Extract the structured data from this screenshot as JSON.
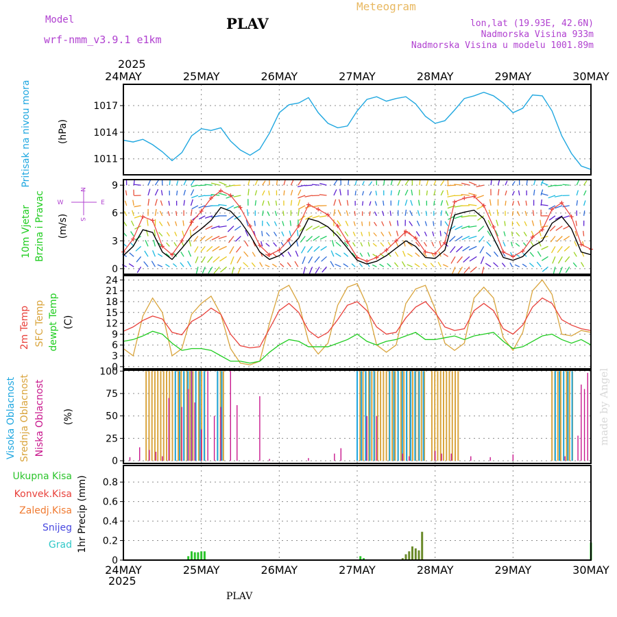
{
  "header": {
    "model_label": "Model",
    "model_name": "wrf-nmm_v3.9.1  e1km",
    "station": "PLAV",
    "product": "Meteogram",
    "lonlat": "lon,lat (19.93E, 42.6N)",
    "elevation": "Nadmorska Visina 933m",
    "model_elevation": "Nadmorska Visina u modelu 1001.89m",
    "year": "2025",
    "footer_station": "PLAV",
    "credit": "made by Angel"
  },
  "colors": {
    "pressure": "#1fa7e0",
    "temp2m": "#e8403a",
    "sfc_temp": "#d9a43c",
    "dewpoint": "#1ecc1e",
    "wind_speed": "#000000",
    "gust": "#e8403a",
    "high_cloud": "#1fa7e0",
    "mid_cloud": "#d9a43c",
    "low_cloud": "#c8168c",
    "total_precip": "#2cc42c",
    "conv_precip": "#e8403a",
    "frozen_precip": "#f07a30",
    "snow": "#4848e0",
    "hail": "#30c8c8",
    "model_label": "#b040d0",
    "product_label": "#e8b860"
  },
  "chart_data": [
    {
      "type": "line",
      "panel": "pressure",
      "ylabel": [
        "Pritisak na nivou mora",
        "(hPa)"
      ],
      "yticks": [
        1011,
        1014,
        1017
      ],
      "ylim": [
        1009.2,
        1019.4
      ],
      "grid": true,
      "x_start": "2025-05-24 00:00",
      "x_ticks": [
        "24MAY",
        "25MAY",
        "26MAY",
        "27MAY",
        "28MAY",
        "29MAY",
        "30MAY"
      ],
      "x": [
        0,
        3,
        6,
        9,
        12,
        15,
        18,
        21,
        24,
        27,
        30,
        33,
        36,
        39,
        42,
        45,
        48,
        51,
        54,
        57,
        60,
        63,
        66,
        69,
        72,
        75,
        78,
        81,
        84,
        87,
        90,
        93,
        96,
        99,
        102,
        105,
        108,
        111,
        114,
        117,
        120,
        123,
        126,
        129,
        132,
        135,
        138,
        141,
        144
      ],
      "series": [
        {
          "values": [
            1013.1,
            1012.9,
            1013.2,
            1012.6,
            1011.8,
            1010.8,
            1011.7,
            1013.6,
            1014.4,
            1014.2,
            1014.5,
            1013.0,
            1012.0,
            1011.4,
            1012.1,
            1013.9,
            1016.2,
            1017.1,
            1017.3,
            1017.9,
            1016.2,
            1015.0,
            1014.5,
            1014.7,
            1016.4,
            1017.7,
            1018.0,
            1017.5,
            1017.8,
            1018.0,
            1017.2,
            1015.8,
            1015.0,
            1015.3,
            1016.5,
            1017.8,
            1018.1,
            1018.5,
            1018.1,
            1017.3,
            1016.2,
            1016.7,
            1018.2,
            1018.1,
            1016.4,
            1013.6,
            1011.6,
            1010.2,
            1009.8
          ]
        }
      ]
    },
    {
      "type": "line",
      "panel": "wind",
      "ylabel": [
        "10m Vjetar",
        "Brzina i Pravac",
        "(m/s)"
      ],
      "compass": {
        "north": "N",
        "south": "S",
        "east": "E",
        "west": "W"
      },
      "yticks": [
        0,
        3,
        6,
        9
      ],
      "ylim": [
        -0.6,
        9.6
      ],
      "grid": true,
      "x": [
        0,
        3,
        6,
        9,
        12,
        15,
        18,
        21,
        24,
        27,
        30,
        33,
        36,
        39,
        42,
        45,
        48,
        51,
        54,
        57,
        60,
        63,
        66,
        69,
        72,
        75,
        78,
        81,
        84,
        87,
        90,
        93,
        96,
        99,
        102,
        105,
        108,
        111,
        114,
        117,
        120,
        123,
        126,
        129,
        132,
        135,
        138,
        141,
        144
      ],
      "series": [
        {
          "name": "speed",
          "values": [
            1.4,
            2.4,
            4.2,
            3.9,
            1.8,
            1.0,
            2.2,
            3.5,
            4.3,
            5.2,
            6.6,
            6.2,
            5.1,
            3.6,
            1.8,
            1.0,
            1.4,
            2.2,
            3.3,
            5.4,
            5.1,
            4.5,
            3.5,
            2.2,
            0.9,
            0.5,
            0.8,
            1.4,
            2.2,
            3.0,
            2.4,
            1.2,
            1.1,
            2.0,
            5.8,
            6.1,
            6.3,
            5.4,
            3.3,
            1.2,
            0.9,
            1.3,
            2.4,
            3.0,
            4.9,
            5.6,
            4.3,
            1.8,
            1.5
          ]
        },
        {
          "name": "gust",
          "values": [
            1.8,
            3.2,
            5.6,
            5.2,
            2.4,
            1.5,
            3.0,
            5.0,
            6.2,
            7.6,
            8.4,
            7.9,
            6.6,
            4.6,
            2.5,
            1.5,
            2.0,
            3.1,
            4.6,
            6.9,
            6.4,
            5.8,
            4.6,
            2.9,
            1.2,
            0.8,
            1.2,
            2.0,
            3.0,
            4.0,
            3.3,
            1.8,
            1.6,
            2.8,
            7.2,
            7.6,
            7.8,
            6.8,
            4.5,
            1.8,
            1.3,
            1.9,
            3.4,
            4.2,
            6.4,
            7.1,
            5.6,
            2.6,
            2.1
          ]
        }
      ]
    },
    {
      "type": "line",
      "panel": "temperature",
      "ylabel": [
        "2m Temp",
        "SFC Temp",
        "dewpt Temp",
        "(C)"
      ],
      "yticks": [
        0,
        3,
        6,
        9,
        12,
        15,
        18,
        21,
        24
      ],
      "ylim": [
        -0.6,
        25.2
      ],
      "grid": true,
      "x": [
        0,
        3,
        6,
        9,
        12,
        15,
        18,
        21,
        24,
        27,
        30,
        33,
        36,
        39,
        42,
        45,
        48,
        51,
        54,
        57,
        60,
        63,
        66,
        69,
        72,
        75,
        78,
        81,
        84,
        87,
        90,
        93,
        96,
        99,
        102,
        105,
        108,
        111,
        114,
        117,
        120,
        123,
        126,
        129,
        132,
        135,
        138,
        141,
        144
      ],
      "series": [
        {
          "name": "2m Temp",
          "values": [
            9.8,
            11.0,
            12.8,
            14.0,
            13.2,
            9.5,
            8.8,
            12.5,
            14.0,
            16.2,
            14.5,
            9.0,
            5.8,
            5.2,
            5.5,
            10.5,
            15.5,
            17.5,
            15.0,
            10.0,
            8.0,
            9.5,
            13.0,
            17.0,
            18.0,
            15.5,
            11.0,
            9.0,
            9.5,
            13.5,
            16.5,
            18.0,
            15.0,
            11.0,
            10.0,
            10.5,
            15.5,
            17.5,
            15.5,
            10.5,
            9.0,
            11.5,
            16.5,
            19.0,
            17.5,
            13.0,
            11.5,
            10.5,
            10.0
          ]
        },
        {
          "name": "SFC Temp",
          "values": [
            5.0,
            3.0,
            14.0,
            19.0,
            15.0,
            3.0,
            5.0,
            14.5,
            17.5,
            19.5,
            14.5,
            5.0,
            1.0,
            0.5,
            1.5,
            12.0,
            21.0,
            22.5,
            17.5,
            7.0,
            3.5,
            6.5,
            17.0,
            22.0,
            23.0,
            17.0,
            6.0,
            4.0,
            6.0,
            17.5,
            21.5,
            22.5,
            16.0,
            6.5,
            4.5,
            6.5,
            19.0,
            22.0,
            19.0,
            8.0,
            4.5,
            9.5,
            21.0,
            24.0,
            20.0,
            9.0,
            8.5,
            10.0,
            9.5
          ]
        },
        {
          "name": "dewpt Temp",
          "values": [
            7.0,
            7.5,
            8.5,
            9.8,
            9.0,
            6.5,
            4.5,
            5.0,
            5.0,
            4.5,
            3.0,
            1.5,
            1.5,
            1.0,
            1.5,
            4.0,
            6.0,
            7.5,
            7.0,
            5.5,
            5.5,
            5.5,
            6.5,
            7.5,
            9.0,
            7.0,
            6.0,
            7.0,
            7.5,
            8.5,
            9.5,
            7.5,
            7.5,
            8.0,
            8.5,
            7.5,
            8.5,
            9.0,
            9.5,
            7.0,
            5.0,
            5.5,
            7.0,
            8.5,
            9.0,
            7.5,
            6.5,
            7.5,
            6.0
          ]
        }
      ]
    },
    {
      "type": "bar",
      "panel": "cloud",
      "ylabel": [
        "Visoka Oblacnost",
        "Srednja Oblacnost",
        "Niska Oblacnost",
        "(%)"
      ],
      "yticks": [
        0,
        25,
        50,
        75,
        100
      ],
      "ylim": [
        -3,
        101
      ],
      "grid": true,
      "high_intervals": [
        [
          16,
          20
        ],
        [
          21,
          25
        ],
        [
          29,
          31
        ],
        [
          72,
          78
        ],
        [
          82,
          93
        ],
        [
          133,
          139
        ]
      ],
      "mid_intervals": [
        [
          7,
          25
        ],
        [
          29,
          31
        ],
        [
          72,
          93
        ],
        [
          95,
          104
        ],
        [
          132,
          139
        ]
      ],
      "low_bars": [
        [
          2,
          4
        ],
        [
          5,
          15
        ],
        [
          8,
          12
        ],
        [
          10,
          10
        ],
        [
          12,
          5
        ],
        [
          14,
          70
        ],
        [
          18,
          60
        ],
        [
          20,
          80
        ],
        [
          21,
          100
        ],
        [
          22,
          65
        ],
        [
          24,
          35
        ],
        [
          26,
          100
        ],
        [
          28,
          50
        ],
        [
          30,
          60
        ],
        [
          33,
          100
        ],
        [
          35,
          62
        ],
        [
          42,
          72
        ],
        [
          45,
          2
        ],
        [
          57,
          3
        ],
        [
          65,
          8
        ],
        [
          67,
          14
        ],
        [
          75,
          50
        ],
        [
          78,
          50
        ],
        [
          86,
          8
        ],
        [
          88,
          5
        ],
        [
          96,
          11
        ],
        [
          98,
          8
        ],
        [
          101,
          8
        ],
        [
          107,
          5
        ],
        [
          113,
          4
        ],
        [
          120,
          7
        ],
        [
          136,
          5
        ],
        [
          140,
          28
        ],
        [
          141,
          85
        ],
        [
          142,
          80
        ],
        [
          143,
          98
        ]
      ]
    },
    {
      "type": "bar",
      "panel": "precip",
      "ylabel": [
        "1hr Precip (mm)"
      ],
      "legend": [
        "Ukupna Kisa",
        "Konvek.Kisa",
        "Zaledj.Kisa",
        "Snijeg",
        "Grad"
      ],
      "yticks": [
        0,
        0.2,
        0.4,
        0.6,
        0.8
      ],
      "ylim": [
        0,
        0.97
      ],
      "grid": true,
      "bars": [
        [
          20,
          0.04
        ],
        [
          21,
          0.09
        ],
        [
          22,
          0.08
        ],
        [
          23,
          0.08
        ],
        [
          24,
          0.09
        ],
        [
          25,
          0.09
        ],
        [
          73,
          0.04
        ],
        [
          74,
          0.02
        ],
        [
          86,
          0.02
        ],
        [
          87,
          0.06
        ],
        [
          88,
          0.09
        ],
        [
          89,
          0.14
        ],
        [
          90,
          0.12
        ],
        [
          91,
          0.1
        ],
        [
          92,
          0.29
        ],
        [
          144,
          0.18
        ]
      ]
    }
  ]
}
